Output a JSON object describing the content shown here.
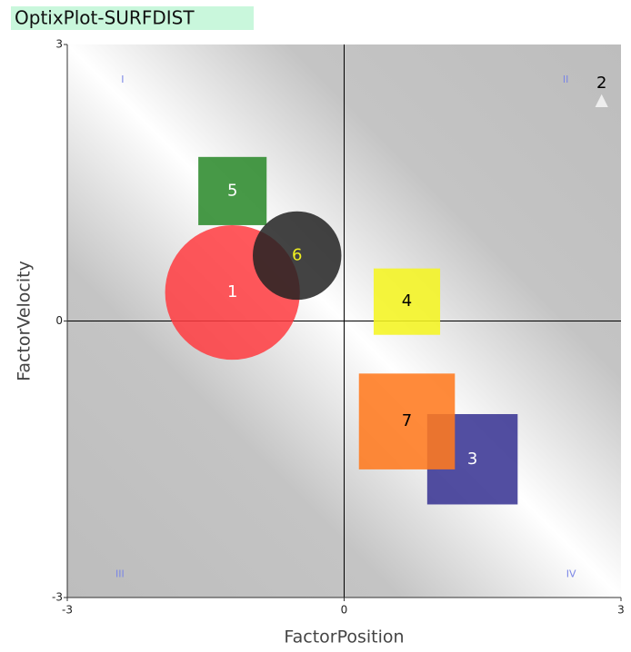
{
  "chart_data": {
    "type": "scatter",
    "title": "OptixPlot-SURFDIST",
    "xlabel": "FactorPosition",
    "ylabel": "FactorVelocity",
    "xlim": [
      -3,
      3
    ],
    "ylim": [
      -3,
      3
    ],
    "xticks": [
      -3,
      0,
      3
    ],
    "yticks": [
      -3,
      0,
      3
    ],
    "quadrant_labels": [
      "I",
      "II",
      "III",
      "IV"
    ],
    "points": [
      {
        "label": "1",
        "x": -1.21,
        "y": 0.31,
        "size": 0.73,
        "shape": "circle",
        "color": "#ff3b3f",
        "label_color": "#ffffff"
      },
      {
        "label": "2",
        "x": 2.79,
        "y": 2.39,
        "size": 0.07,
        "shape": "triangle",
        "color": "#eeeeee",
        "label_color": "#000000"
      },
      {
        "label": "3",
        "x": 1.39,
        "y": -1.5,
        "size": 0.49,
        "shape": "square",
        "color": "#3a3694",
        "label_color": "#ffffff"
      },
      {
        "label": "4",
        "x": 0.68,
        "y": 0.21,
        "size": 0.36,
        "shape": "square",
        "color": "#f5f522",
        "label_color": "#000000"
      },
      {
        "label": "5",
        "x": -1.21,
        "y": 1.41,
        "size": 0.37,
        "shape": "square",
        "color": "#2e8b2e",
        "label_color": "#ffffff"
      },
      {
        "label": "6",
        "x": -0.51,
        "y": 0.71,
        "size": 0.48,
        "shape": "circle",
        "color": "#222222",
        "label_color": "#f0f020"
      },
      {
        "label": "7",
        "x": 0.68,
        "y": -1.09,
        "size": 0.52,
        "shape": "square",
        "color": "#ff7a1f",
        "label_color": "#000000"
      }
    ]
  }
}
